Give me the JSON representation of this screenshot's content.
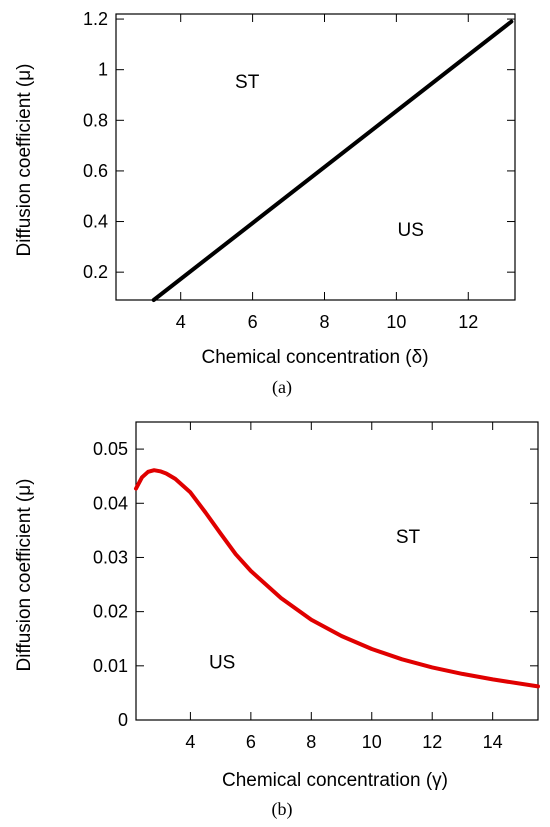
{
  "chart_data": [
    {
      "type": "line",
      "panel_label": "(a)",
      "xlabel": "Chemical concentration (δ)",
      "ylabel": "Diffusion coefficient (μ)",
      "xlim": [
        2.2,
        13.3
      ],
      "ylim": [
        0.09,
        1.22
      ],
      "xticks": [
        4,
        6,
        8,
        10,
        12
      ],
      "yticks": [
        0.2,
        0.4,
        0.6,
        0.8,
        1,
        1.2
      ],
      "series": [
        {
          "color": "#000000",
          "x": [
            3.25,
            13.2
          ],
          "y": [
            0.09,
            1.19
          ]
        }
      ],
      "annotations": [
        {
          "text": "ST",
          "x": 5.85,
          "y": 0.955
        },
        {
          "text": "US",
          "x": 10.4,
          "y": 0.37
        }
      ],
      "grid": false
    },
    {
      "type": "line",
      "panel_label": "(b)",
      "xlabel": "Chemical concentration (γ)",
      "ylabel": "Diffusion coefficient (μ)",
      "xlim": [
        2.2,
        15.5
      ],
      "ylim": [
        0,
        0.055
      ],
      "xticks": [
        4,
        6,
        8,
        10,
        12,
        14
      ],
      "yticks": [
        0,
        0.01,
        0.02,
        0.03,
        0.04,
        0.05
      ],
      "series": [
        {
          "color": "#e00000",
          "x": [
            2.2,
            2.4,
            2.6,
            2.8,
            3.0,
            3.2,
            3.5,
            4.0,
            4.5,
            5.0,
            5.5,
            6.0,
            7.0,
            8.0,
            9.0,
            10.0,
            11.0,
            12.0,
            13.0,
            14.0,
            15.5
          ],
          "y": [
            0.0427,
            0.0448,
            0.0458,
            0.0461,
            0.0459,
            0.0455,
            0.0445,
            0.042,
            0.0383,
            0.0344,
            0.0306,
            0.0275,
            0.0225,
            0.0185,
            0.0155,
            0.0131,
            0.0112,
            0.0097,
            0.0085,
            0.0075,
            0.0062
          ]
        }
      ],
      "annotations": [
        {
          "text": "ST",
          "x": 11.2,
          "y": 0.034
        },
        {
          "text": "US",
          "x": 5.05,
          "y": 0.0108
        }
      ],
      "grid": false
    }
  ]
}
